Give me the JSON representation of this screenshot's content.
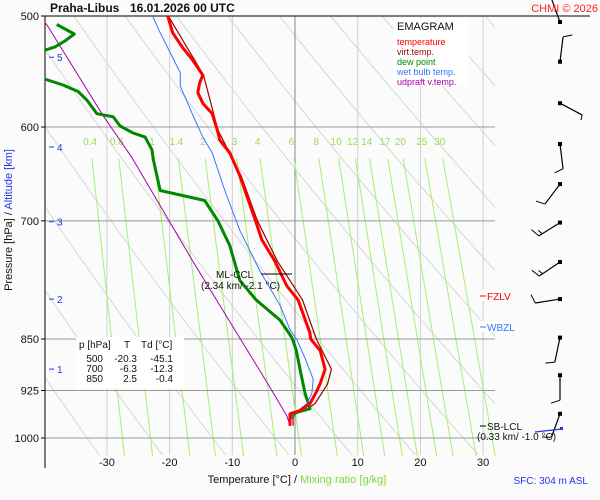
{
  "header": {
    "station": "Praha-Libus",
    "datetime": "16.01.2026 00 UTC",
    "copyright": "CHMI © 2026"
  },
  "legend": {
    "title": "EMAGRAM",
    "items": [
      {
        "label": "temperature",
        "color": "#ff0000"
      },
      {
        "label": "virt.temp.",
        "color": "#990000"
      },
      {
        "label": "dew point",
        "color": "#008800"
      },
      {
        "label": "wet bulb temp.",
        "color": "#3377ff"
      },
      {
        "label": "udpraft v.temp.",
        "color": "#aa00aa"
      }
    ]
  },
  "table": {
    "headers": [
      "p [hPa]",
      "T",
      "Td [°C]"
    ],
    "rows": [
      [
        "500",
        "-20.3",
        "-45.1"
      ],
      [
        "700",
        "-6.3",
        "-12.3"
      ],
      [
        "850",
        "2.5",
        "-0.4"
      ]
    ]
  },
  "annotations": {
    "ml_ccl": "ML-CCL",
    "ml_ccl_value": "(2.34 km/ -2.1 °C)",
    "fzlv": "FZLV",
    "wbzl": "WBZL",
    "sb_lcl": "SB-LCL",
    "sb_lcl_value": "(0.33 km/ -1.0 °C)",
    "sfc": "SFC: 304 m ASL"
  },
  "chart_data": {
    "type": "line",
    "title": "Praha-Libus 16.01.2026 00 UTC",
    "xlabel": "Temperature [°C]",
    "xlabel2": "Mixing ratio [g/kg]",
    "ylabel": "Pressure [hPa]",
    "ylabel2": "Altitude [km]",
    "xlim": [
      -40,
      32
    ],
    "ylim": [
      1000,
      500
    ],
    "y_scale": "log",
    "x_ticks": [
      "-30",
      "-20",
      "-10",
      "0",
      "10",
      "20",
      "30"
    ],
    "y_ticks": [
      "500",
      "600",
      "700",
      "850",
      "925",
      "1000"
    ],
    "altitude_ticks": [
      {
        "km": "5",
        "p": 535
      },
      {
        "km": "4",
        "p": 620
      },
      {
        "km": "3",
        "p": 701
      },
      {
        "km": "2",
        "p": 796
      },
      {
        "km": "1",
        "p": 893
      }
    ],
    "mixing_ratio_labels": [
      "0.4",
      "0.6",
      "1",
      "1.4",
      "2",
      "3",
      "4",
      "6",
      "8",
      "10",
      "12",
      "14",
      "17",
      "20",
      "25",
      "30"
    ],
    "series": [
      {
        "name": "temperature",
        "color": "#ff0000",
        "points": [
          [
            500,
            -20.3
          ],
          [
            514,
            -19.5
          ],
          [
            526,
            -18.0
          ],
          [
            537,
            -16.4
          ],
          [
            551,
            -14.7
          ],
          [
            558,
            -15.2
          ],
          [
            567,
            -15.5
          ],
          [
            577,
            -14.7
          ],
          [
            587,
            -13.2
          ],
          [
            603,
            -12.4
          ],
          [
            613,
            -12.0
          ],
          [
            626,
            -10.4
          ],
          [
            650,
            -8.8
          ],
          [
            700,
            -6.3
          ],
          [
            722,
            -5.3
          ],
          [
            748,
            -3.2
          ],
          [
            779,
            -1.3
          ],
          [
            797,
            0.5
          ],
          [
            842,
            2.4
          ],
          [
            850,
            2.5
          ],
          [
            866,
            4.0
          ],
          [
            893,
            4.8
          ],
          [
            915,
            4.0
          ],
          [
            929,
            3.3
          ],
          [
            945,
            2.4
          ],
          [
            956,
            0.8
          ],
          [
            961,
            -0.8
          ],
          [
            980,
            -0.8
          ]
        ]
      },
      {
        "name": "virt.temp.",
        "color": "#990000",
        "points": [
          [
            500,
            -20.2
          ],
          [
            551,
            -14.6
          ],
          [
            603,
            -12.3
          ],
          [
            650,
            -8.6
          ],
          [
            700,
            -6.0
          ],
          [
            748,
            -2.8
          ],
          [
            797,
            1.2
          ],
          [
            850,
            3.4
          ],
          [
            893,
            5.8
          ],
          [
            915,
            5.2
          ],
          [
            945,
            3.2
          ],
          [
            956,
            1.5
          ],
          [
            961,
            -0.3
          ],
          [
            980,
            -0.3
          ]
        ]
      },
      {
        "name": "dew point",
        "color": "#008800",
        "points": [
          [
            507,
            -38.0
          ],
          [
            515,
            -35.2
          ],
          [
            521,
            -36.7
          ],
          [
            526,
            -38.3
          ],
          [
            531,
            -41.0
          ],
          [
            550,
            -42.0
          ],
          [
            555,
            -39.7
          ],
          [
            560,
            -37.0
          ],
          [
            566,
            -34.6
          ],
          [
            574,
            -33.2
          ],
          [
            587,
            -31.6
          ],
          [
            590,
            -29.0
          ],
          [
            599,
            -27.9
          ],
          [
            606,
            -25.8
          ],
          [
            610,
            -23.9
          ],
          [
            623,
            -22.8
          ],
          [
            633,
            -22.6
          ],
          [
            666,
            -21.5
          ],
          [
            677,
            -14.4
          ],
          [
            700,
            -12.3
          ],
          [
            729,
            -10.4
          ],
          [
            772,
            -8.8
          ],
          [
            797,
            -6.2
          ],
          [
            824,
            -2.4
          ],
          [
            844,
            -0.8
          ],
          [
            850,
            -0.4
          ],
          [
            866,
            0.2
          ],
          [
            893,
            0.8
          ],
          [
            929,
            1.6
          ],
          [
            953,
            2.4
          ],
          [
            959,
            0.2
          ],
          [
            969,
            -0.8
          ],
          [
            980,
            -0.8
          ]
        ]
      },
      {
        "name": "wet bulb temp.",
        "color": "#3377ff",
        "points": [
          [
            499,
            -22.8
          ],
          [
            514,
            -21.5
          ],
          [
            531,
            -19.9
          ],
          [
            549,
            -18.3
          ],
          [
            561,
            -18.3
          ],
          [
            587,
            -16.4
          ],
          [
            610,
            -14.7
          ],
          [
            626,
            -13.2
          ],
          [
            666,
            -11.2
          ],
          [
            711,
            -8.8
          ],
          [
            760,
            -5.6
          ],
          [
            804,
            -2.4
          ],
          [
            837,
            -0.8
          ],
          [
            851,
            0.3
          ],
          [
            877,
            1.6
          ],
          [
            908,
            2.9
          ],
          [
            929,
            2.7
          ],
          [
            945,
            1.9
          ],
          [
            956,
            0.5
          ],
          [
            969,
            -0.8
          ],
          [
            980,
            -0.8
          ]
        ]
      },
      {
        "name": "udpraft v.temp.",
        "color": "#aa00aa",
        "points": [
          [
            500,
            -41.0
          ],
          [
            507,
            -39.6
          ],
          [
            589,
            -30.6
          ],
          [
            631,
            -26.0
          ],
          [
            748,
            -16.3
          ],
          [
            833,
            -9.9
          ],
          [
            920,
            -4.0
          ],
          [
            964,
            -1.3
          ],
          [
            980,
            -0.8
          ]
        ]
      }
    ],
    "wind_barbs": [
      {
        "p": 505,
        "dir": 340,
        "speed_kt": 5
      },
      {
        "p": 539,
        "dir": 7,
        "speed_kt": 10
      },
      {
        "p": 577,
        "dir": 118,
        "speed_kt": 5
      },
      {
        "p": 617,
        "dir": 173,
        "speed_kt": 10
      },
      {
        "p": 659,
        "dir": 217,
        "speed_kt": 10
      },
      {
        "p": 702,
        "dir": 238,
        "speed_kt": 15
      },
      {
        "p": 749,
        "dir": 236,
        "speed_kt": 15
      },
      {
        "p": 796,
        "dir": 261,
        "speed_kt": 10
      },
      {
        "p": 848,
        "dir": 192,
        "speed_kt": 10
      },
      {
        "p": 902,
        "dir": 180,
        "speed_kt": 10
      },
      {
        "p": 961,
        "dir": 200,
        "speed_kt": 10
      }
    ]
  }
}
